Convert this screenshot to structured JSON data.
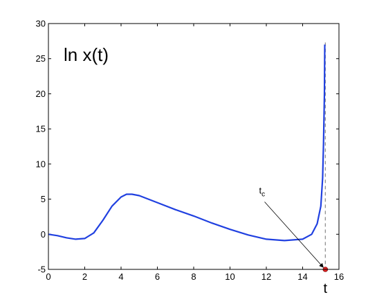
{
  "chart_data": {
    "type": "line",
    "title": "",
    "xlabel": "t",
    "ylabel": "",
    "xlim": [
      0,
      16
    ],
    "ylim": [
      -5,
      30
    ],
    "xticks": [
      0,
      2,
      4,
      6,
      8,
      10,
      12,
      14,
      16
    ],
    "yticks": [
      -5,
      0,
      5,
      10,
      15,
      20,
      25,
      30
    ],
    "grid": false,
    "colors": {
      "series": "#2040e0",
      "marker": "#e02020",
      "asymptote": "#888888"
    },
    "series": [
      {
        "x": [
          0,
          0.5,
          1.0,
          1.5,
          2.0,
          2.5,
          3.0,
          3.5,
          4.0,
          4.3,
          4.6,
          5.0,
          6.0,
          7.0,
          8.0,
          9.0,
          10.0,
          11.0,
          12.0,
          13.0,
          13.5,
          14.0,
          14.5,
          14.8,
          15.0,
          15.1,
          15.15,
          15.2,
          15.22
        ],
        "y": [
          0,
          -0.2,
          -0.5,
          -0.7,
          -0.6,
          0.2,
          2.0,
          4.0,
          5.3,
          5.7,
          5.7,
          5.5,
          4.5,
          3.5,
          2.6,
          1.6,
          0.7,
          -0.1,
          -0.7,
          -0.9,
          -0.8,
          -0.7,
          0.0,
          1.5,
          4.0,
          8.0,
          13.0,
          20.0,
          27.0
        ]
      }
    ],
    "asymptote_x": 15.25,
    "critical_point": {
      "x": 15.25,
      "y": -5
    },
    "annotations": {
      "series_label": "ln x(t)",
      "tc_base": "t",
      "tc_sub": "c",
      "tc_label_pos": {
        "x": 11.6,
        "y": 5.8
      }
    }
  }
}
